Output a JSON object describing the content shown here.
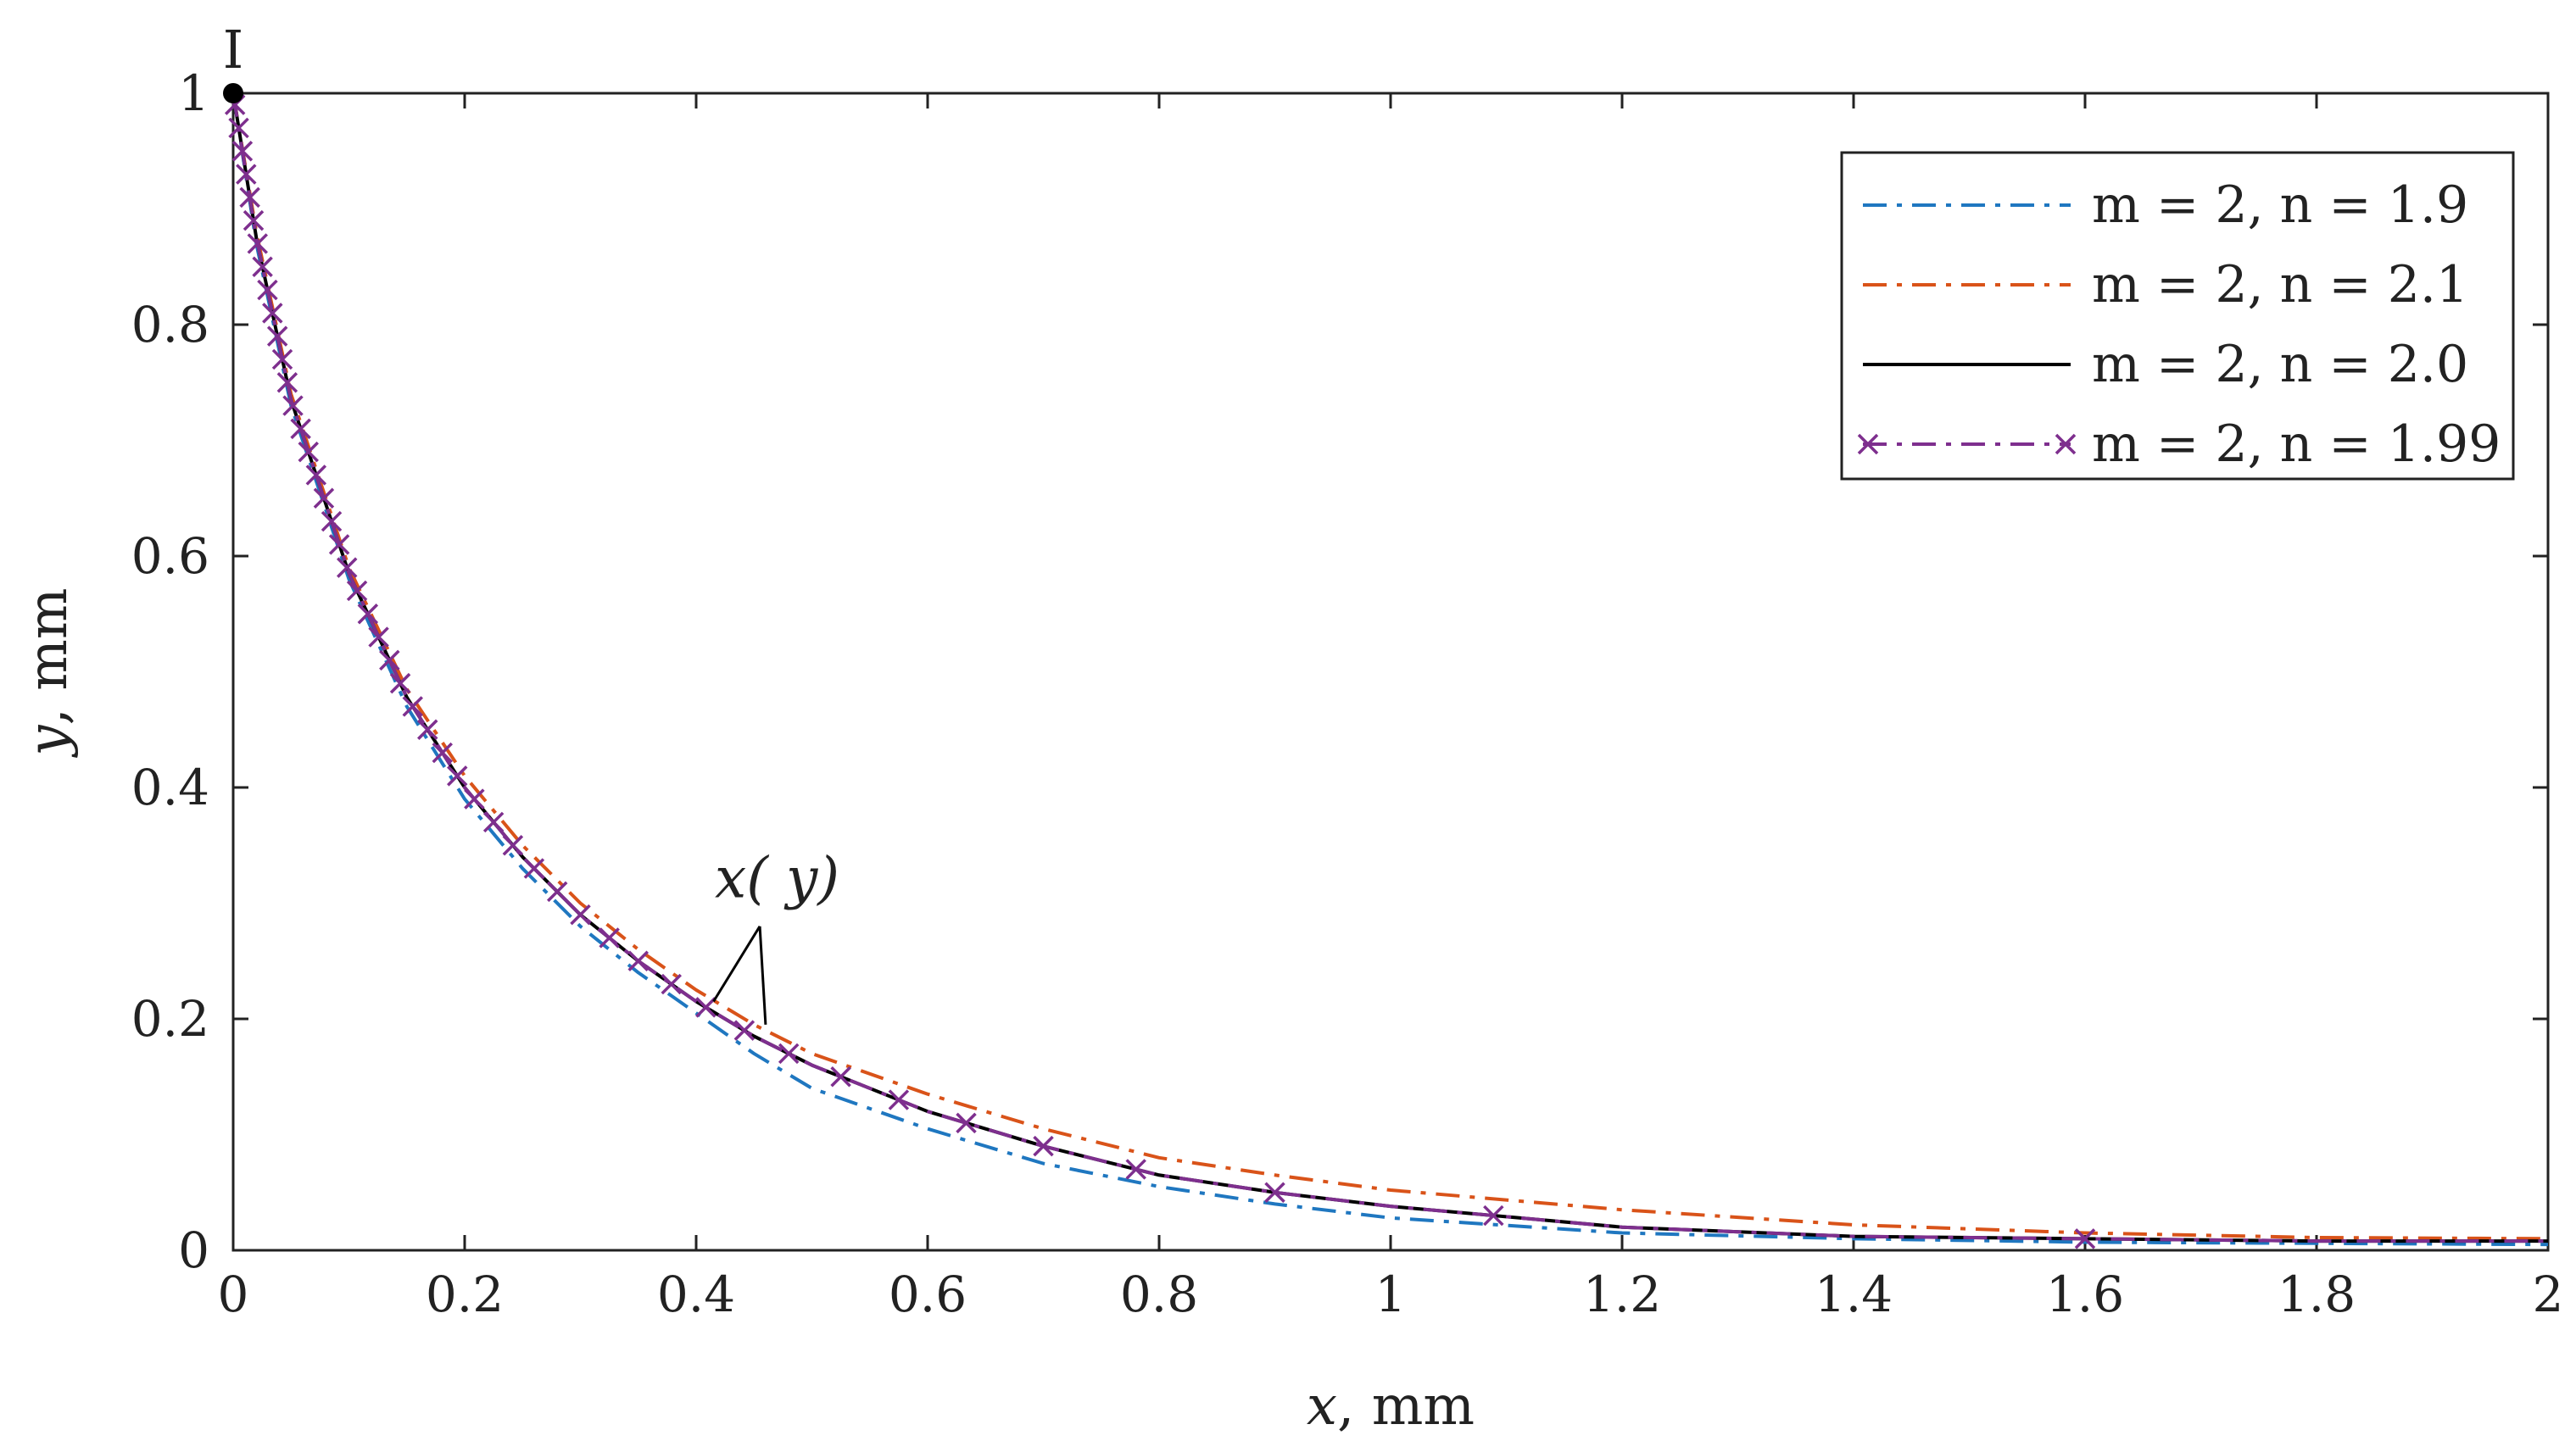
{
  "chart_data": {
    "type": "line",
    "title": "",
    "xlabel_var": "x",
    "xlabel_unit": ", mm",
    "ylabel_var": "y",
    "ylabel_unit": ", mm",
    "xlim": [
      0,
      2
    ],
    "ylim": [
      0,
      1
    ],
    "x_ticks": [
      0,
      0.2,
      0.4,
      0.6,
      0.8,
      1,
      1.2,
      1.4,
      1.6,
      1.8,
      2
    ],
    "x_tick_labels": [
      "0",
      "0.2",
      "0.4",
      "0.6",
      "0.8",
      "1",
      "1.2",
      "1.4",
      "1.6",
      "1.8",
      "2"
    ],
    "y_ticks": [
      0,
      0.2,
      0.4,
      0.6,
      0.8,
      1
    ],
    "y_tick_labels": [
      "0",
      "0.2",
      "0.4",
      "0.6",
      "0.8",
      "1"
    ],
    "grid": false,
    "legend_position": "top-right",
    "series": [
      {
        "name": "m = 2, n = 1.9",
        "style": "dash-dot",
        "color": "#1f77c0",
        "marker": "none",
        "x": [
          0,
          0.02,
          0.05,
          0.1,
          0.15,
          0.2,
          0.25,
          0.3,
          0.35,
          0.4,
          0.45,
          0.5,
          0.6,
          0.7,
          0.8,
          0.9,
          1.0,
          1.2,
          1.4,
          1.6,
          1.8,
          2.0
        ],
        "y": [
          1.0,
          0.87,
          0.73,
          0.58,
          0.47,
          0.39,
          0.33,
          0.28,
          0.24,
          0.205,
          0.17,
          0.14,
          0.105,
          0.075,
          0.055,
          0.04,
          0.028,
          0.015,
          0.01,
          0.007,
          0.006,
          0.005
        ]
      },
      {
        "name": "m = 2, n = 2.1",
        "style": "dash-dot",
        "color": "#d95319",
        "marker": "none",
        "x": [
          0,
          0.02,
          0.05,
          0.1,
          0.15,
          0.2,
          0.25,
          0.3,
          0.35,
          0.4,
          0.45,
          0.5,
          0.6,
          0.7,
          0.8,
          0.9,
          1.0,
          1.2,
          1.4,
          1.6,
          1.8,
          2.0
        ],
        "y": [
          1.0,
          0.88,
          0.74,
          0.59,
          0.485,
          0.41,
          0.35,
          0.3,
          0.26,
          0.225,
          0.195,
          0.17,
          0.135,
          0.105,
          0.08,
          0.065,
          0.052,
          0.035,
          0.022,
          0.015,
          0.011,
          0.01
        ]
      },
      {
        "name": "m = 2, n = 2.0",
        "style": "solid",
        "color": "#000000",
        "marker": "none",
        "x": [
          0,
          0.02,
          0.05,
          0.1,
          0.15,
          0.2,
          0.25,
          0.3,
          0.35,
          0.4,
          0.45,
          0.5,
          0.6,
          0.7,
          0.8,
          0.9,
          1.0,
          1.2,
          1.4,
          1.6,
          1.8,
          2.0
        ],
        "y": [
          1.0,
          0.875,
          0.735,
          0.585,
          0.478,
          0.4,
          0.34,
          0.29,
          0.25,
          0.215,
          0.185,
          0.16,
          0.12,
          0.09,
          0.065,
          0.05,
          0.038,
          0.02,
          0.012,
          0.01,
          0.008,
          0.008
        ]
      },
      {
        "name": "m = 2, n = 1.99",
        "style": "dash-dot",
        "color": "#7e2f8e",
        "marker": "x",
        "x": [
          0,
          0.02,
          0.05,
          0.1,
          0.15,
          0.2,
          0.25,
          0.3,
          0.35,
          0.4,
          0.45,
          0.5,
          0.6,
          0.7,
          0.8,
          0.9,
          1.0,
          1.2,
          1.4,
          1.6,
          1.8,
          2.0
        ],
        "y": [
          1.0,
          0.875,
          0.735,
          0.585,
          0.478,
          0.4,
          0.34,
          0.29,
          0.25,
          0.215,
          0.185,
          0.16,
          0.12,
          0.09,
          0.065,
          0.05,
          0.038,
          0.02,
          0.012,
          0.01,
          0.008,
          0.008
        ],
        "marker_y": [
          0.99,
          0.97,
          0.95,
          0.93,
          0.91,
          0.89,
          0.87,
          0.85,
          0.83,
          0.81,
          0.79,
          0.77,
          0.75,
          0.73,
          0.71,
          0.69,
          0.67,
          0.65,
          0.63,
          0.61,
          0.59,
          0.57,
          0.55,
          0.53,
          0.51,
          0.49,
          0.47,
          0.45,
          0.43,
          0.41,
          0.39,
          0.37,
          0.35,
          0.33,
          0.31,
          0.29,
          0.27,
          0.25,
          0.23,
          0.21,
          0.19,
          0.17,
          0.15,
          0.13,
          0.11,
          0.09,
          0.07,
          0.05,
          0.03,
          0.01
        ]
      }
    ],
    "annotations": [
      {
        "text": "x( y)",
        "x": 0.47,
        "y": 0.305,
        "arrow_targets": [
          [
            0.415,
            0.215
          ],
          [
            0.46,
            0.195
          ]
        ]
      },
      {
        "text": "I",
        "x": 0,
        "y": 1.0,
        "marker": "filled-circle"
      }
    ]
  }
}
